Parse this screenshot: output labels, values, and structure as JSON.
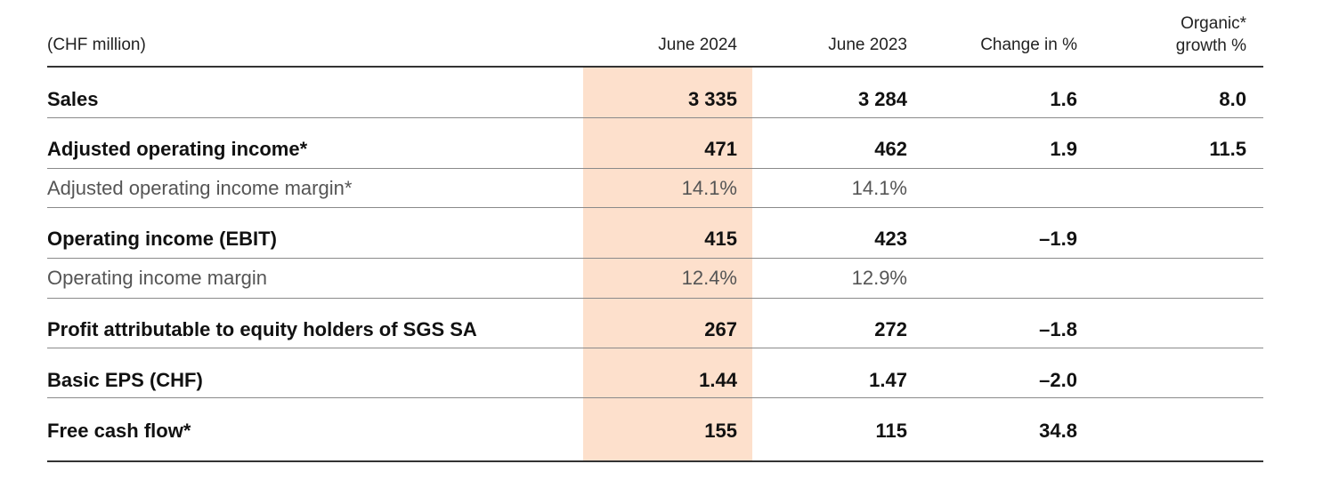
{
  "header": {
    "unit": "(CHF million)",
    "col1": "June 2024",
    "col2": "June 2023",
    "col3": "Change in %",
    "col4_line1": "Organic*",
    "col4_line2": "growth %"
  },
  "highlight_color": "#fde0cc",
  "rows": [
    {
      "label": "Sales",
      "june2024": "3 335",
      "june2023": "3 284",
      "change": "1.6",
      "organic": "8.0",
      "style": "bold"
    },
    {
      "label": "Adjusted operating income*",
      "june2024": "471",
      "june2023": "462",
      "change": "1.9",
      "organic": "11.5",
      "style": "bold"
    },
    {
      "label": "Adjusted operating income margin*",
      "june2024": "14.1%",
      "june2023": "14.1%",
      "change": "",
      "organic": "",
      "style": "sub"
    },
    {
      "label": "Operating income (EBIT)",
      "june2024": "415",
      "june2023": "423",
      "change": "–1.9",
      "organic": "",
      "style": "bold"
    },
    {
      "label": "Operating income margin",
      "june2024": "12.4%",
      "june2023": "12.9%",
      "change": "",
      "organic": "",
      "style": "sub"
    },
    {
      "label": "Profit attributable to equity holders of SGS SA",
      "june2024": "267",
      "june2023": "272",
      "change": "–1.8",
      "organic": "",
      "style": "bold"
    },
    {
      "label": "Basic EPS (CHF)",
      "june2024": "1.44",
      "june2023": "1.47",
      "change": "–2.0",
      "organic": "",
      "style": "bold"
    },
    {
      "label": "Free cash flow*",
      "june2024": "155",
      "june2023": "115",
      "change": "34.8",
      "organic": "",
      "style": "bold"
    }
  ]
}
